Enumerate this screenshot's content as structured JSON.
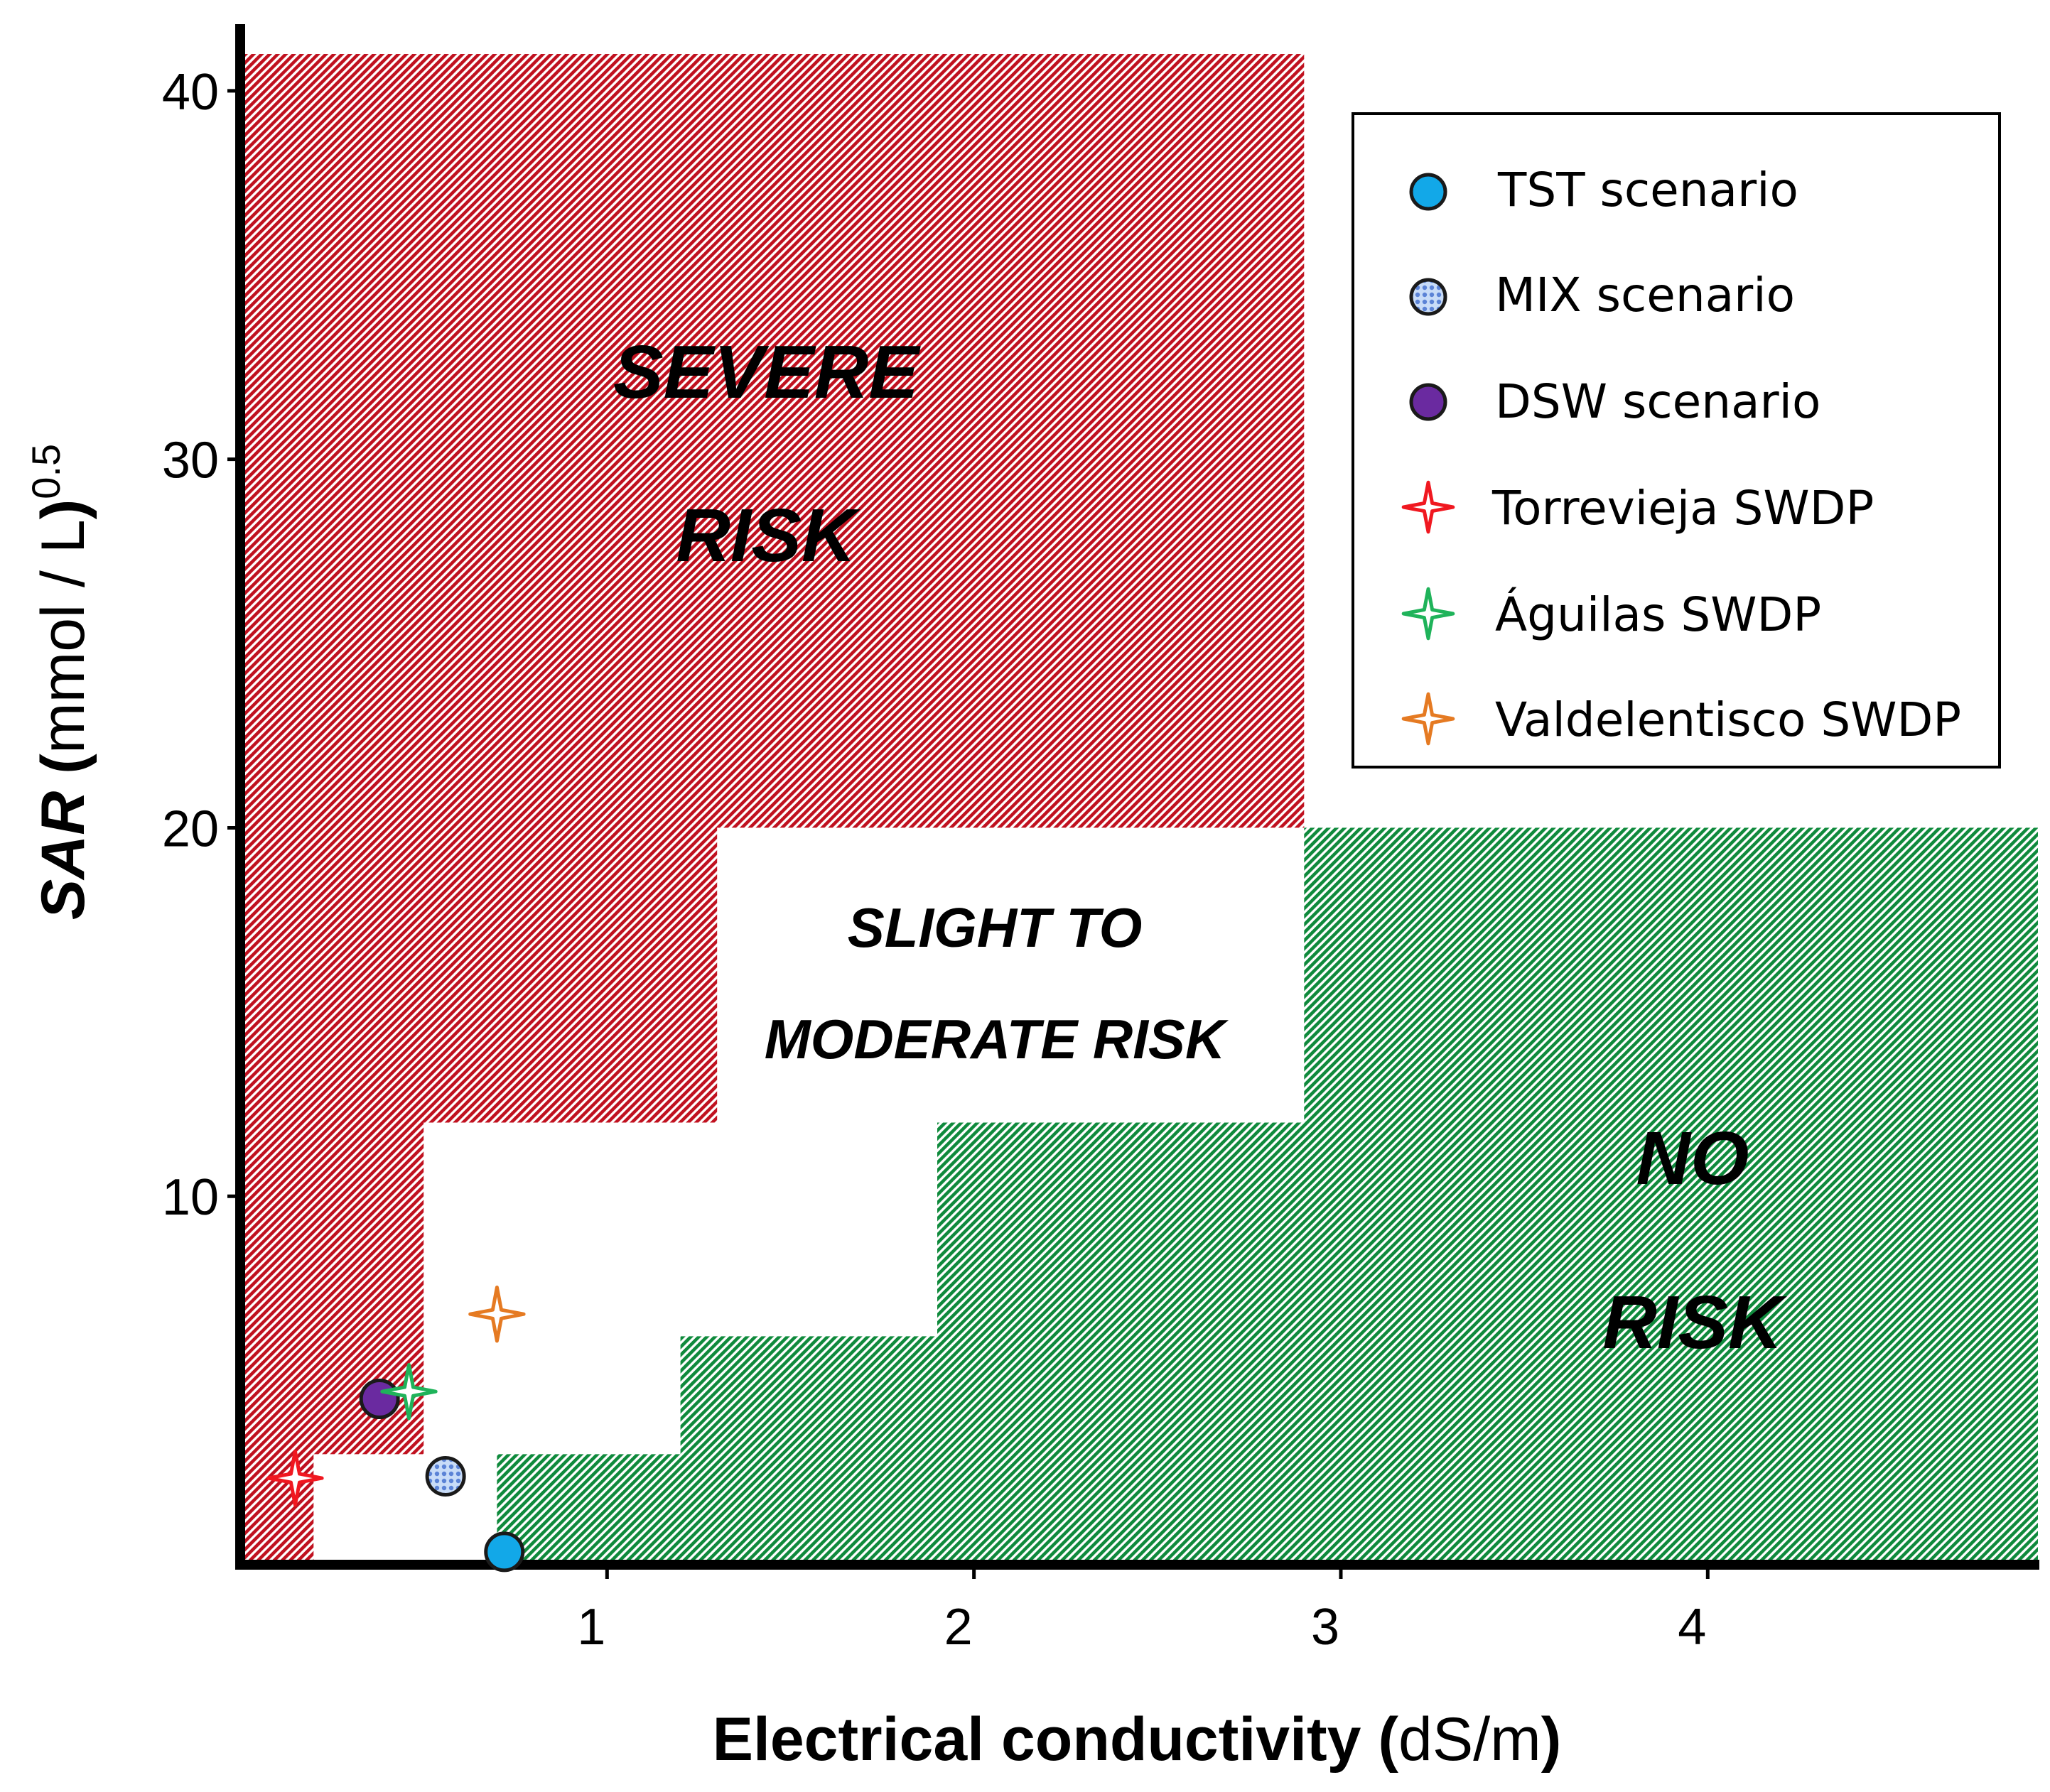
{
  "chart_data": {
    "type": "scatter",
    "xlabel": {
      "bold": "Electrical conductivity",
      "open": " (",
      "unit": "dS/m",
      "close": ")"
    },
    "ylabel": {
      "italic": "SAR",
      "open": " (",
      "unit": "mmol / L",
      "close": ")",
      "exponent": "0.5"
    },
    "xlim": [
      0,
      4.9
    ],
    "ylim": [
      0,
      41
    ],
    "x_ticks": [
      1,
      2,
      3,
      4
    ],
    "y_ticks": [
      10,
      20,
      30,
      40
    ],
    "x_tick_labels": [
      "1",
      "2",
      "3",
      "4"
    ],
    "y_tick_labels": [
      "10",
      "20",
      "30",
      "40"
    ],
    "regions": [
      {
        "name": "severe",
        "color": "#c0111f",
        "label_lines": [
          "SEVERE",
          "RISK"
        ],
        "boundary": [
          [
            0,
            0
          ],
          [
            0.2,
            0
          ],
          [
            0.2,
            3
          ],
          [
            0.5,
            3
          ],
          [
            0.5,
            12
          ],
          [
            1.3,
            12
          ],
          [
            1.3,
            20
          ],
          [
            2.9,
            20
          ],
          [
            2.9,
            41
          ],
          [
            0,
            41
          ]
        ]
      },
      {
        "name": "slight-to-moderate",
        "color": "#ffffff",
        "label_lines": [
          "SLIGHT TO",
          "MODERATE RISK"
        ]
      },
      {
        "name": "none",
        "color": "#0f8a3c",
        "label_lines": [
          "NO",
          "RISK"
        ],
        "boundary": [
          [
            0.7,
            0
          ],
          [
            4.9,
            0
          ],
          [
            4.9,
            20
          ],
          [
            2.9,
            20
          ],
          [
            2.9,
            12
          ],
          [
            1.9,
            12
          ],
          [
            1.9,
            6.2
          ],
          [
            1.2,
            6.2
          ],
          [
            1.2,
            3
          ],
          [
            0.7,
            3
          ]
        ]
      }
    ],
    "series": [
      {
        "name": "TST scenario",
        "marker": "circle",
        "color": "#12a8e8",
        "x": 0.72,
        "y": 0.35
      },
      {
        "name": "MIX scenario",
        "marker": "circle-patterned",
        "color": "#8ab4f0",
        "x": 0.56,
        "y": 2.4
      },
      {
        "name": "DSW scenario",
        "marker": "circle",
        "color": "#6a2aa0",
        "x": 0.38,
        "y": 4.5
      },
      {
        "name": "Torrevieja SWDP",
        "marker": "star4",
        "color": "#f01820",
        "x": 0.15,
        "y": 2.35
      },
      {
        "name": "Águilas SWDP",
        "marker": "star4",
        "color": "#1fb35a",
        "x": 0.46,
        "y": 4.7
      },
      {
        "name": "Valdelentisco SWDP",
        "marker": "star4",
        "color": "#e57a22",
        "x": 0.7,
        "y": 6.8
      }
    ],
    "legend_position": "top-right"
  }
}
